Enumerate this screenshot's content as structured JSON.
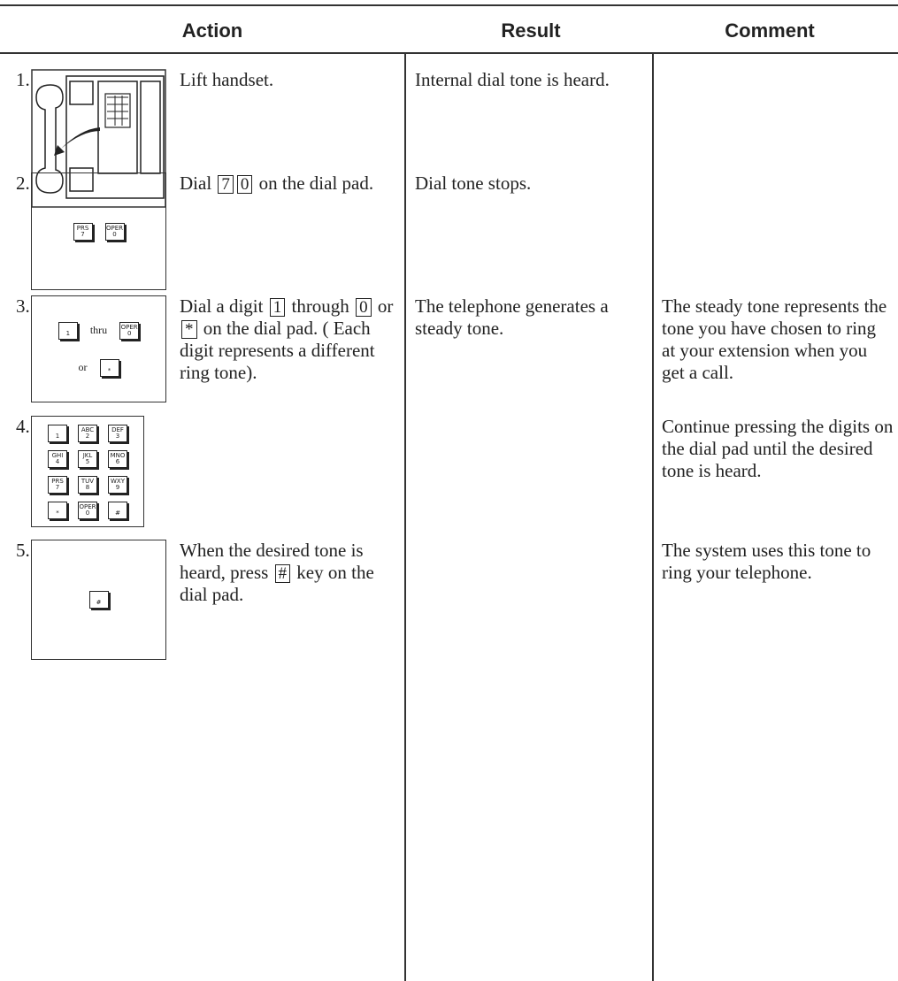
{
  "header": {
    "action": "Action",
    "result": "Result",
    "comment": "Comment"
  },
  "rows": [
    {
      "number": "1.",
      "action": [
        "Lift handset."
      ],
      "result": "Internal dial tone is heard."
    },
    {
      "number": "2.",
      "action": [
        "Dial ",
        {
          "key": "7"
        },
        {
          "key": "0"
        },
        " on the dial pad."
      ],
      "icon": [
        [
          {
            "top": "PRS",
            "bottom": "7"
          },
          {
            "top": "OPER",
            "bottom": "0"
          }
        ]
      ],
      "result": "Dial tone stops."
    },
    {
      "number": "3.",
      "action": [
        "Dial a digit ",
        {
          "key": "1"
        },
        " through ",
        {
          "key": "0"
        },
        " or ",
        {
          "key": "*"
        },
        " on the dial pad. ( Each digit represents a different ring tone)."
      ],
      "icon": [
        [
          {
            "bottom": "1"
          },
          "thru",
          {
            "top": "OPER",
            "bottom": "0"
          }
        ],
        [
          "or",
          {
            "bottom": "*"
          }
        ]
      ],
      "result": "The telephone generates a steady tone.",
      "comment": "The steady tone represents the tone you have chosen to ring at your extension when you get a call."
    },
    {
      "number": "4.",
      "action": [],
      "icon": [
        [
          {
            "bottom": "1"
          },
          {
            "top": "ABC",
            "bottom": "2"
          },
          {
            "top": "DEF",
            "bottom": "3"
          }
        ],
        [
          {
            "top": "GHI",
            "bottom": "4"
          },
          {
            "top": "JKL",
            "bottom": "5"
          },
          {
            "top": "MNO",
            "bottom": "6"
          }
        ],
        [
          {
            "top": "PRS",
            "bottom": "7"
          },
          {
            "top": "TUV",
            "bottom": "8"
          },
          {
            "top": "WXY",
            "bottom": "9"
          }
        ],
        [
          {
            "bottom": "*"
          },
          {
            "top": "OPER",
            "bottom": "0"
          },
          {
            "bottom": "#"
          }
        ]
      ],
      "comment": "Continue pressing the digits on the dial pad until the desired tone is heard."
    },
    {
      "number": "5.",
      "action": [
        "When the desired tone is heard, press ",
        {
          "key": "#"
        },
        " key on the dial pad."
      ],
      "icon": [
        [
          {
            "bottom": "#"
          }
        ]
      ],
      "comment": "The system uses this tone to ring your telephone."
    }
  ]
}
